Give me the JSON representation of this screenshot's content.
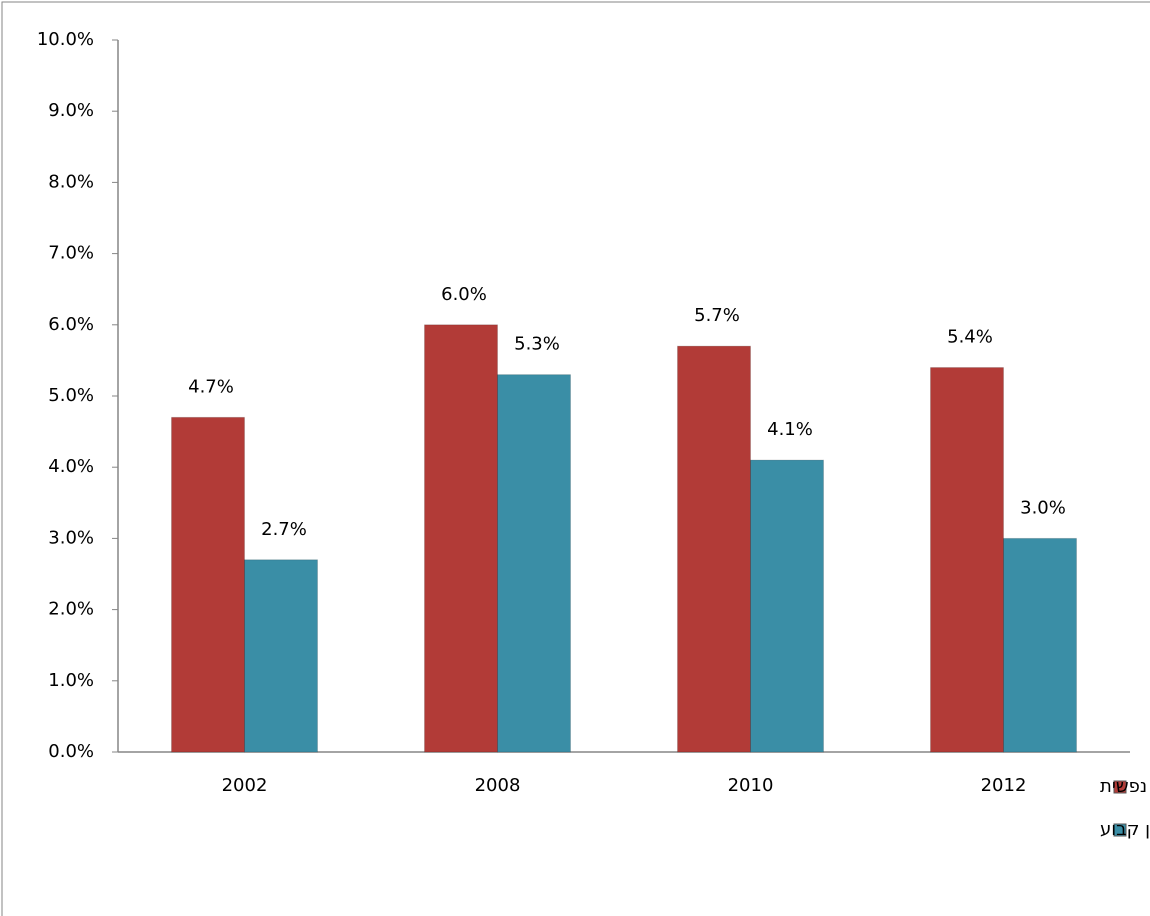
{
  "chart_data": {
    "type": "bar",
    "categories": [
      "2002",
      "2008",
      "2010",
      "2012"
    ],
    "series": [
      {
        "name": "מוגבל במידה רבה בפעילויות היום יום בגלל מחלה מתמשכת או נכות, חולשה או בעיה נפשית",
        "color": "#b23b37",
        "values": [
          4.7,
          6.0,
          5.7,
          5.4
        ],
        "value_labels": [
          "4.7%",
          "6.0%",
          "5.7%",
          "5.4%"
        ]
      },
      {
        "name": "חולה או נכה באופן קבוע",
        "color": "#3a8ea6",
        "values": [
          2.7,
          5.3,
          4.1,
          3.0
        ],
        "value_labels": [
          "2.7%",
          "5.3%",
          "4.1%",
          "3.0%"
        ]
      }
    ],
    "ylim": [
      0,
      10
    ],
    "yticks": [
      {
        "value": 0,
        "label": "0.0%"
      },
      {
        "value": 1,
        "label": "1.0%"
      },
      {
        "value": 2,
        "label": "2.0%"
      },
      {
        "value": 3,
        "label": "3.0%"
      },
      {
        "value": 4,
        "label": "4.0%"
      },
      {
        "value": 5,
        "label": "5.0%"
      },
      {
        "value": 6,
        "label": "6.0%"
      },
      {
        "value": 7,
        "label": "7.0%"
      },
      {
        "value": 8,
        "label": "8.0%"
      },
      {
        "value": 9,
        "label": "9.0%"
      },
      {
        "value": 10,
        "label": "10.0%"
      }
    ],
    "grid": false,
    "legend": "bottom"
  }
}
